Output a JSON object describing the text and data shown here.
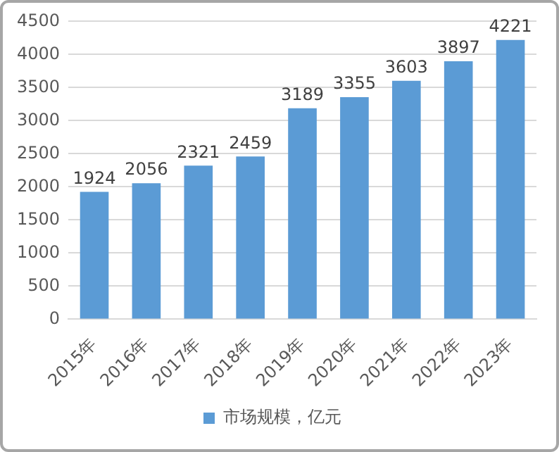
{
  "chart_data": {
    "type": "bar",
    "categories": [
      "2015年",
      "2016年",
      "2017年",
      "2018年",
      "2019年",
      "2020年",
      "2021年",
      "2022年",
      "2023年"
    ],
    "series": [
      {
        "name": "市场规模，亿元",
        "color": "#5b9bd5",
        "values": [
          1924,
          2056,
          2321,
          2459,
          3189,
          3355,
          3603,
          3897,
          4221
        ]
      }
    ],
    "ylim": [
      0,
      4500
    ],
    "yticks": [
      0,
      500,
      1000,
      1500,
      2000,
      2500,
      3000,
      3500,
      4000,
      4500
    ],
    "grid": "y",
    "legend": "bottom",
    "data_labels": true
  }
}
